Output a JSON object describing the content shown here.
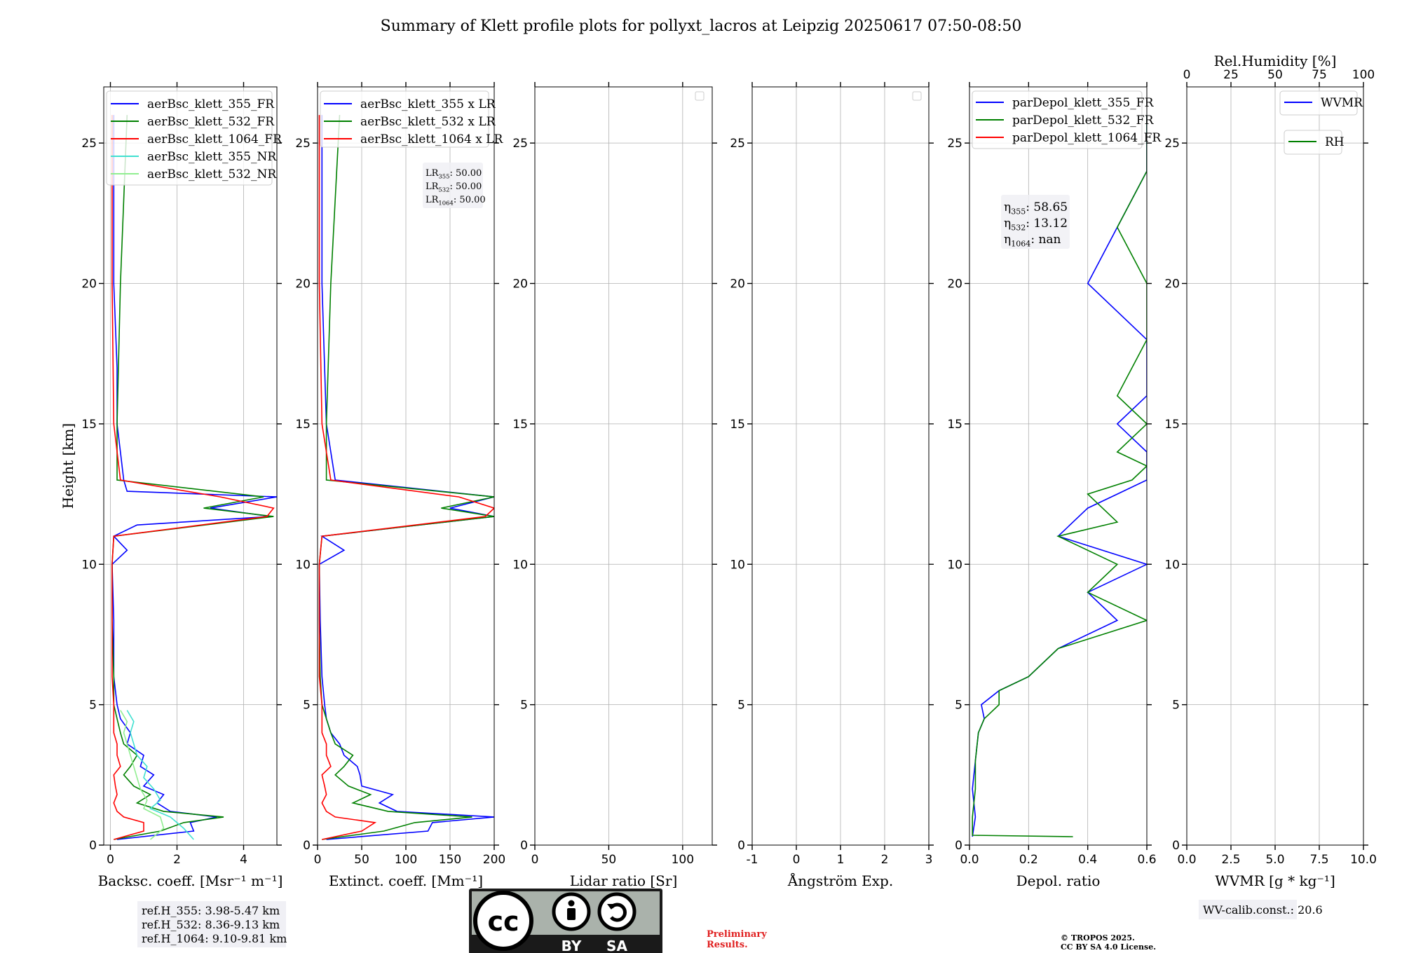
{
  "title": "Summary of Klett profile plots for pollyxt_lacros at Leipzig 20250617 07:50-08:50",
  "ylabel": "Height [km]",
  "colors": {
    "b355": "#0000ff",
    "b532": "#008000",
    "b1064": "#ff0000",
    "nr355": "#40e0d0",
    "nr532": "#90ee90",
    "credit": "#e02020"
  },
  "panels": {
    "bsc": {
      "xlabel": "Backsc. coeff. [Msr⁻¹ m⁻¹]",
      "xlim": [
        -0.2,
        5
      ],
      "xticks": [
        0,
        2,
        4
      ],
      "legend": [
        "aerBsc_klett_355_FR",
        "aerBsc_klett_532_FR",
        "aerBsc_klett_1064_FR",
        "aerBsc_klett_355_NR",
        "aerBsc_klett_532_NR"
      ]
    },
    "ext": {
      "xlabel": "Extinct. coeff. [Mm⁻¹]",
      "xlim": [
        0,
        200
      ],
      "xticks": [
        0,
        50,
        100,
        150,
        200
      ],
      "legend": [
        "aerBsc_klett_355 x LR",
        "aerBsc_klett_532 x LR",
        "aerBsc_klett_1064 x LR"
      ],
      "lr_box": [
        {
          "label": "LR",
          "sub": "355",
          "value": ": 50.00"
        },
        {
          "label": "LR",
          "sub": "532",
          "value": ": 50.00"
        },
        {
          "label": "LR",
          "sub": "1064",
          "value": ": 50.00"
        }
      ]
    },
    "lr": {
      "xlabel": "Lidar ratio [Sr]",
      "xlim": [
        0,
        120
      ],
      "xticks": [
        0,
        50,
        100
      ]
    },
    "ang": {
      "xlabel": "Ångström Exp.",
      "xlim": [
        -1,
        3
      ],
      "xticks": [
        -1,
        0,
        1,
        2,
        3
      ]
    },
    "dep": {
      "xlabel": "Depol. ratio",
      "xlim": [
        0,
        0.6
      ],
      "xticks": [
        0.0,
        0.2,
        0.4,
        0.6
      ],
      "legend": [
        "parDepol_klett_355_FR",
        "parDepol_klett_532_FR",
        "parDepol_klett_1064_FR"
      ],
      "eta_box": [
        {
          "label": "η",
          "sub": "355",
          "value": ": 58.65"
        },
        {
          "label": "η",
          "sub": "532",
          "value": ": 13.12"
        },
        {
          "label": "η",
          "sub": "1064",
          "value": ": nan"
        }
      ]
    },
    "wv": {
      "xlabel": "WVMR [g * kg⁻¹]",
      "xlim": [
        0,
        10
      ],
      "xticks": [
        0.0,
        2.5,
        5.0,
        7.5,
        10.0
      ],
      "top_label": "Rel.Humidity [%]",
      "top_xlim": [
        0,
        100
      ],
      "top_xticks": [
        0,
        25,
        50,
        75,
        100
      ],
      "legend_wvmr": "WVMR",
      "legend_rh": "RH"
    }
  },
  "yticks": [
    0,
    5,
    10,
    15,
    20,
    25
  ],
  "ylim": [
    0,
    27
  ],
  "ref_box": [
    "ref.H_355: 3.98-5.47 km",
    "ref.H_532: 8.36-9.13 km",
    "ref.H_1064: 9.10-9.81 km"
  ],
  "wv_calib": "WV-calib.const.: 20.6",
  "preliminary": [
    "Preliminary",
    "Results."
  ],
  "copyright": [
    "© TROPOS 2025.",
    "CC BY SA 4.0 License."
  ],
  "license_badge": {
    "by": "BY",
    "sa": "SA"
  },
  "chart_data": [
    {
      "type": "line",
      "xlabel": "Backsc. coeff. [Msr⁻¹ m⁻¹]",
      "ylabel": "Height [km]",
      "xlim": [
        -0.2,
        5
      ],
      "ylim": [
        0,
        27
      ],
      "series": [
        {
          "name": "aerBsc_klett_355_FR",
          "color": "#0000ff",
          "y": [
            0.2,
            0.5,
            0.8,
            1.0,
            1.2,
            1.5,
            1.8,
            2.1,
            2.5,
            2.8,
            3.2,
            3.6,
            4.0,
            4.5,
            5.0,
            6.0,
            8.0,
            10.0,
            10.5,
            11.0,
            11.4,
            11.7,
            12.0,
            12.4,
            12.6,
            13.0,
            14.0,
            15.0,
            17.0,
            20.0,
            23.0,
            26.0
          ],
          "x": [
            0.2,
            2.5,
            2.4,
            3.2,
            1.8,
            1.4,
            1.6,
            1.0,
            1.3,
            0.9,
            1.0,
            0.5,
            0.6,
            0.3,
            0.2,
            0.1,
            0.1,
            0.05,
            0.5,
            0.1,
            0.8,
            4.8,
            3.0,
            5.0,
            0.5,
            0.4,
            0.3,
            0.2,
            0.2,
            0.1,
            0.1,
            0.1
          ]
        },
        {
          "name": "aerBsc_klett_532_FR",
          "color": "#008000",
          "y": [
            0.2,
            0.5,
            0.8,
            1.0,
            1.2,
            1.5,
            1.8,
            2.1,
            2.5,
            2.8,
            3.2,
            3.6,
            4.0,
            4.5,
            5.0,
            6.0,
            8.0,
            10.0,
            11.0,
            11.7,
            12.0,
            12.4,
            13.0,
            15.0,
            20.0,
            26.0
          ],
          "x": [
            0.1,
            1.5,
            2.2,
            3.4,
            1.6,
            0.8,
            1.2,
            0.7,
            0.4,
            0.6,
            0.8,
            0.4,
            0.3,
            0.2,
            0.1,
            0.1,
            0.05,
            0.05,
            0.1,
            4.9,
            2.8,
            4.6,
            0.2,
            0.2,
            0.3,
            0.5
          ]
        },
        {
          "name": "aerBsc_klett_1064_FR",
          "color": "#ff0000",
          "y": [
            0.2,
            0.5,
            0.8,
            1.0,
            1.2,
            1.5,
            1.8,
            2.1,
            2.5,
            2.8,
            3.2,
            3.6,
            4.0,
            4.5,
            5.0,
            6.0,
            8.0,
            10.0,
            11.0,
            11.7,
            12.0,
            12.4,
            13.0,
            15.0,
            20.0,
            26.0
          ],
          "x": [
            0.1,
            1.0,
            1.0,
            0.4,
            0.2,
            0.1,
            0.2,
            0.15,
            0.1,
            0.3,
            0.2,
            0.2,
            0.1,
            0.1,
            0.1,
            0.05,
            0.05,
            0.05,
            0.1,
            4.7,
            4.9,
            3.3,
            0.3,
            0.1,
            0.05,
            0.05
          ]
        },
        {
          "name": "aerBsc_klett_355_NR",
          "color": "#40e0d0",
          "y": [
            0.2,
            0.6,
            1.0,
            1.3,
            1.6,
            2.0,
            2.4,
            2.8,
            3.2,
            3.6,
            4.0,
            4.4,
            4.8
          ],
          "x": [
            2.5,
            2.2,
            1.8,
            1.2,
            1.5,
            1.3,
            1.0,
            1.1,
            0.8,
            0.7,
            0.6,
            0.7,
            0.5
          ]
        },
        {
          "name": "aerBsc_klett_532_NR",
          "color": "#90ee90",
          "y": [
            0.2,
            0.6,
            1.0,
            1.3,
            1.6,
            2.0,
            2.4,
            2.8,
            3.2,
            3.6,
            4.0,
            4.4,
            4.8
          ],
          "x": [
            1.2,
            1.6,
            1.5,
            1.0,
            1.1,
            0.9,
            0.8,
            0.7,
            0.6,
            0.5,
            0.4,
            0.5,
            0.3
          ]
        }
      ]
    },
    {
      "type": "line",
      "xlabel": "Extinct. coeff. [Mm⁻¹]",
      "ylabel": "Height [km]",
      "xlim": [
        0,
        200
      ],
      "ylim": [
        0,
        27
      ],
      "series": [
        {
          "name": "aerBsc_klett_355 x LR",
          "color": "#0000ff",
          "y": [
            0.2,
            0.5,
            0.8,
            1.0,
            1.2,
            1.5,
            1.8,
            2.1,
            2.5,
            2.8,
            3.2,
            3.6,
            4.0,
            4.5,
            5.0,
            6.0,
            8.0,
            10.0,
            10.5,
            11.0,
            11.7,
            12.0,
            12.4,
            13.0,
            15.0,
            20.0,
            26.0
          ],
          "x": [
            10,
            125,
            130,
            200,
            90,
            70,
            85,
            50,
            48,
            45,
            30,
            25,
            15,
            10,
            8,
            5,
            3,
            2,
            30,
            5,
            200,
            150,
            200,
            20,
            10,
            5,
            5
          ]
        },
        {
          "name": "aerBsc_klett_532 x LR",
          "color": "#008000",
          "y": [
            0.2,
            0.5,
            0.8,
            1.0,
            1.2,
            1.5,
            1.8,
            2.1,
            2.5,
            2.8,
            3.2,
            3.6,
            4.0,
            4.5,
            5.0,
            6.0,
            8.0,
            10.0,
            11.0,
            11.7,
            12.0,
            12.4,
            13.0,
            15.0,
            20.0,
            26.0
          ],
          "x": [
            5,
            75,
            110,
            175,
            80,
            40,
            60,
            35,
            20,
            30,
            40,
            20,
            15,
            10,
            5,
            3,
            2,
            2,
            5,
            200,
            140,
            200,
            10,
            10,
            15,
            25
          ]
        },
        {
          "name": "aerBsc_klett_1064 x LR",
          "color": "#ff0000",
          "y": [
            0.2,
            0.5,
            0.8,
            1.0,
            1.2,
            1.5,
            1.8,
            2.1,
            2.5,
            2.8,
            3.2,
            3.6,
            4.0,
            4.5,
            5.0,
            6.0,
            8.0,
            10.0,
            11.0,
            11.7,
            12.0,
            12.4,
            13.0,
            15.0,
            20.0,
            26.0
          ],
          "x": [
            5,
            50,
            65,
            20,
            10,
            5,
            10,
            8,
            5,
            15,
            10,
            10,
            5,
            5,
            5,
            2,
            2,
            2,
            5,
            190,
            200,
            160,
            15,
            5,
            2,
            2
          ]
        }
      ]
    },
    {
      "type": "line",
      "xlabel": "Lidar ratio [Sr]",
      "ylabel": "Height [km]",
      "xlim": [
        0,
        120
      ],
      "ylim": [
        0,
        27
      ],
      "series": []
    },
    {
      "type": "line",
      "xlabel": "Ångström Exp.",
      "ylabel": "Height [km]",
      "xlim": [
        -1,
        3
      ],
      "ylim": [
        0,
        27
      ],
      "series": []
    },
    {
      "type": "line",
      "xlabel": "Depol. ratio",
      "ylabel": "Height [km]",
      "xlim": [
        0,
        0.6
      ],
      "ylim": [
        0,
        27
      ],
      "series": [
        {
          "name": "parDepol_klett_355_FR",
          "color": "#0000ff",
          "y": [
            0.3,
            1.0,
            2.0,
            3.0,
            4.0,
            4.5,
            5.0,
            5.5,
            6.0,
            7.0,
            8.0,
            9.0,
            10.0,
            11.0,
            11.5,
            12.0,
            12.5,
            13.0,
            14.0,
            15.0,
            16.0,
            18.0,
            20.0,
            22.0,
            24.0,
            26.0
          ],
          "x": [
            0.01,
            0.02,
            0.01,
            0.02,
            0.03,
            0.05,
            0.04,
            0.1,
            0.2,
            0.3,
            0.5,
            0.4,
            0.6,
            0.3,
            0.35,
            0.4,
            0.5,
            0.6,
            0.6,
            0.5,
            0.6,
            0.6,
            0.4,
            0.5,
            0.6,
            0.6
          ]
        },
        {
          "name": "parDepol_klett_532_FR",
          "color": "#008000",
          "y": [
            0.3,
            0.35,
            1.0,
            2.0,
            3.0,
            4.0,
            4.5,
            5.0,
            5.5,
            6.0,
            7.0,
            8.0,
            9.0,
            10.0,
            11.0,
            11.5,
            12.0,
            12.5,
            13.0,
            13.5,
            14.0,
            15.0,
            16.0,
            18.0,
            20.0,
            22.0,
            24.0,
            26.0
          ],
          "x": [
            0.35,
            0.01,
            0.01,
            0.02,
            0.02,
            0.03,
            0.05,
            0.1,
            0.1,
            0.2,
            0.3,
            0.6,
            0.4,
            0.5,
            0.3,
            0.5,
            0.45,
            0.4,
            0.55,
            0.6,
            0.5,
            0.6,
            0.5,
            0.6,
            0.6,
            0.5,
            0.6,
            0.6
          ]
        }
      ]
    },
    {
      "type": "line",
      "xlabel": "WVMR [g * kg⁻¹]",
      "ylabel": "Height [km]",
      "xlim": [
        0,
        10
      ],
      "ylim": [
        0,
        27
      ],
      "top_xlabel": "Rel.Humidity [%]",
      "top_xlim": [
        0,
        100
      ],
      "series": [
        {
          "name": "WVMR",
          "color": "#0000ff",
          "x": [],
          "y": []
        },
        {
          "name": "RH",
          "color": "#008000",
          "x": [],
          "y": []
        }
      ]
    }
  ]
}
